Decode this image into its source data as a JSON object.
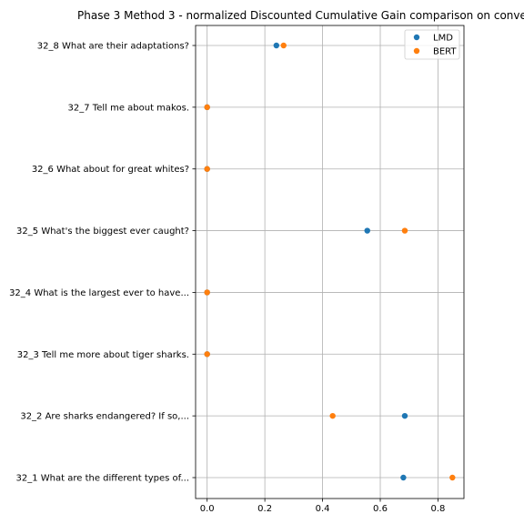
{
  "chart_data": {
    "type": "scatter",
    "title": "Phase 3 Method 3 - normalized Discounted Cumulative Gain comparison on conve",
    "xlabel": "",
    "ylabel": "",
    "xlim": [
      -0.04,
      0.89
    ],
    "x_ticks": [
      "0.0",
      "0.2",
      "0.4",
      "0.6",
      "0.8"
    ],
    "categories": [
      "32_1 What are the different types of...",
      "32_2 Are sharks endangered? If so,...",
      "32_3 Tell me more about tiger sharks.",
      "32_4 What is the largest ever to have...",
      "32_5 What's the biggest ever caught?",
      "32_6 What about for great whites?",
      "32_7 Tell me about makos.",
      "32_8 What are their adaptations?"
    ],
    "series": [
      {
        "name": "LMD",
        "color": "#1f77b4",
        "values": [
          0.68,
          0.685,
          0.0,
          0.0,
          0.555,
          0.0,
          0.0,
          0.24
        ]
      },
      {
        "name": "BERT",
        "color": "#ff7f0e",
        "values": [
          0.85,
          0.435,
          0.0,
          0.0,
          0.685,
          0.0,
          0.0,
          0.265
        ]
      }
    ],
    "grid": true,
    "legend_position": "top-right"
  }
}
